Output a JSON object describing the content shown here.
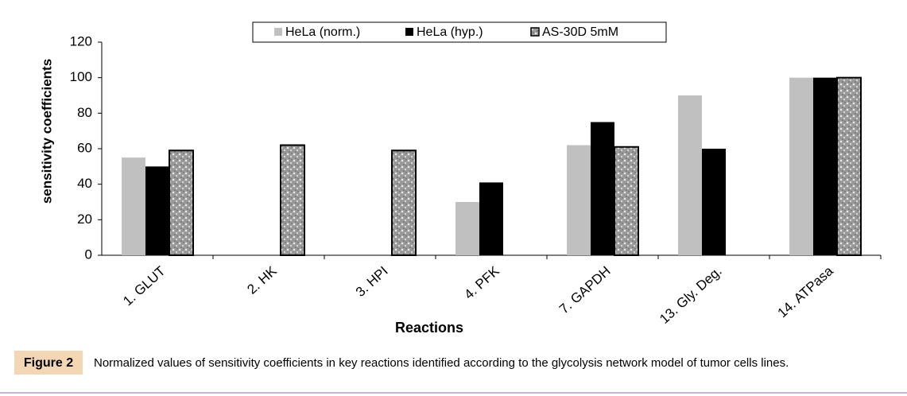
{
  "chart_data": {
    "type": "bar",
    "ylabel": "sensitivity coefficients",
    "xlabel": "Reactions",
    "categories": [
      "1. GLUT",
      "2. HK",
      "3. HPI",
      "4. PFK",
      "7. GAPDH",
      "13. Gly. Deg.",
      "14. ATPasa"
    ],
    "series": [
      {
        "name": "HeLa (norm.)",
        "color": "#c0c0c0",
        "values": [
          55,
          null,
          null,
          30,
          62,
          90,
          100
        ]
      },
      {
        "name": "HeLa (hyp.)",
        "color": "#000000",
        "values": [
          50,
          null,
          null,
          41,
          75,
          60,
          100
        ]
      },
      {
        "name": "AS-30D 5mM",
        "color": "#a8a8a8",
        "pattern": true,
        "values": [
          59,
          62,
          59,
          null,
          61,
          null,
          100
        ]
      }
    ],
    "ylim": [
      0,
      120
    ],
    "yticks": [
      0,
      20,
      40,
      60,
      80,
      100,
      120
    ],
    "legend": "top"
  },
  "figure": {
    "label": "Figure 2",
    "caption": "Normalized values of sensitivity coefficients in key reactions identified according to the glycolysis network model of tumor cells lines."
  }
}
